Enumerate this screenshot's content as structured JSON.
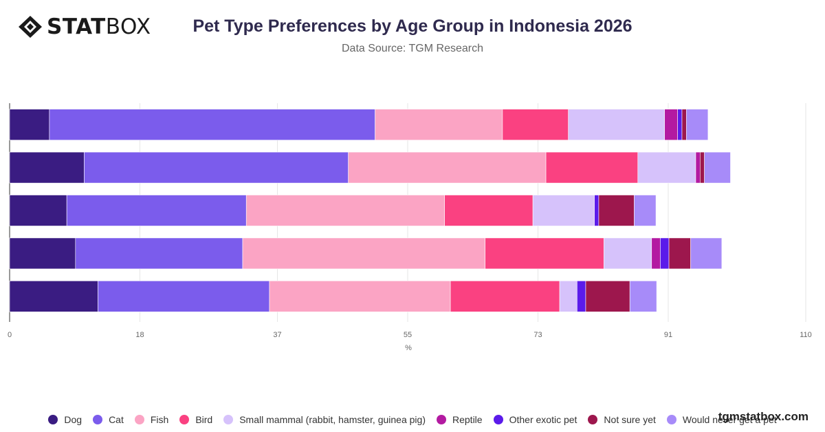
{
  "brand": {
    "bold": "STAT",
    "light": "BOX"
  },
  "watermark": "tgmstatbox.com",
  "chart_data": {
    "type": "bar",
    "orientation": "horizontal",
    "stacked": true,
    "title": "Pet Type Preferences by Age Group in Indonesia 2026",
    "subtitle": "Data Source: TGM Research",
    "xlabel": "%",
    "ylabel": "",
    "xlim": [
      0,
      110
    ],
    "xticks": [
      "0",
      "18",
      "37",
      "55",
      "73",
      "91",
      "110"
    ],
    "grid": true,
    "legend_position": "bottom",
    "categories": [
      "",
      "",
      "",
      "",
      ""
    ],
    "series": [
      {
        "name": "Dog",
        "color": "#3a1c82",
        "values": [
          5.5,
          10.3,
          7.9,
          9.1,
          12.2
        ]
      },
      {
        "name": "Cat",
        "color": "#7b5cec",
        "values": [
          45.0,
          36.5,
          24.8,
          23.1,
          23.7
        ]
      },
      {
        "name": "Fish",
        "color": "#fba4c4",
        "values": [
          17.6,
          27.3,
          27.4,
          33.5,
          25.0
        ]
      },
      {
        "name": "Bird",
        "color": "#fa4181",
        "values": [
          9.1,
          12.7,
          12.2,
          16.4,
          15.1
        ]
      },
      {
        "name": "Small mammal (rabbit, hamster, guinea pig)",
        "color": "#d6c2fb",
        "values": [
          13.3,
          8.0,
          8.5,
          6.6,
          2.4
        ]
      },
      {
        "name": "Reptile",
        "color": "#b31aa1",
        "values": [
          1.8,
          0.6,
          0.0,
          1.2,
          0.0
        ]
      },
      {
        "name": "Other exotic pet",
        "color": "#5b1bea",
        "values": [
          0.6,
          0.0,
          0.6,
          1.2,
          1.2
        ]
      },
      {
        "name": "Not sure yet",
        "color": "#9d174d",
        "values": [
          0.6,
          0.6,
          4.9,
          3.0,
          6.1
        ]
      },
      {
        "name": "Would never get a pet",
        "color": "#a78bf9",
        "values": [
          3.0,
          3.6,
          3.0,
          4.3,
          3.7
        ]
      }
    ]
  }
}
